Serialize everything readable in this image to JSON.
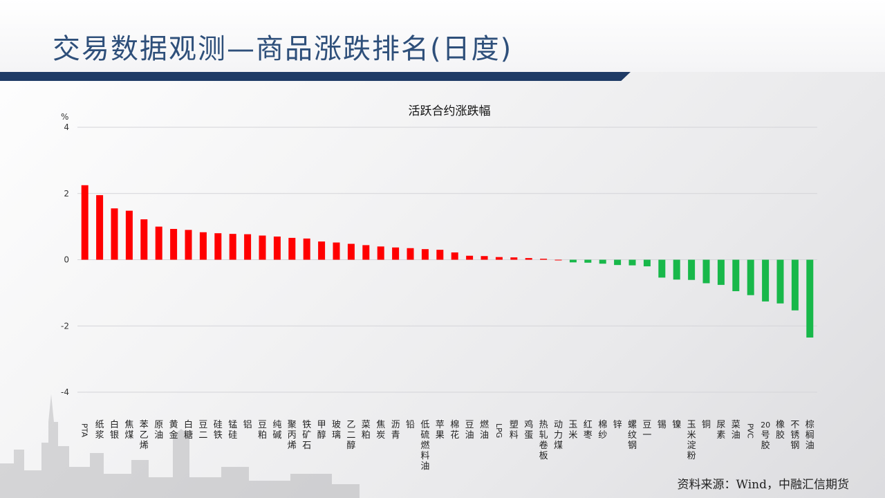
{
  "header": {
    "title": "交易数据观测—商品涨跌排名(日度)"
  },
  "source": "资料来源：Wind，中融汇信期货",
  "colors": {
    "up": "#ff0000",
    "down": "#18b84a",
    "title": "#2e4f7a",
    "bar": "#1f3b66"
  },
  "chart_data": {
    "type": "bar",
    "title": "活跃合约涨跌幅",
    "ylabel": "%",
    "ylim": [
      -4,
      4
    ],
    "yticks": [
      4,
      2,
      0,
      -2,
      -4
    ],
    "grid": true,
    "categories": [
      "PTA",
      "纸浆",
      "白银",
      "焦煤",
      "苯乙烯",
      "原油",
      "黄金",
      "白糖",
      "豆二",
      "硅铁",
      "锰硅",
      "铝",
      "豆粕",
      "纯碱",
      "聚丙烯",
      "铁矿石",
      "甲醇",
      "玻璃",
      "乙二醇",
      "菜粕",
      "焦炭",
      "沥青",
      "铅",
      "低硫燃料油",
      "苹果",
      "棉花",
      "豆油",
      "燃油",
      "LPG",
      "塑料",
      "鸡蛋",
      "热轧卷板",
      "动力煤",
      "玉米",
      "红枣",
      "棉纱",
      "锌",
      "螺纹钢",
      "豆一",
      "锡",
      "镍",
      "玉米淀粉",
      "铜",
      "尿素",
      "菜油",
      "PVC",
      "20号胶",
      "橡胶",
      "不锈钢",
      "棕榈油"
    ],
    "values": [
      2.25,
      1.95,
      1.55,
      1.48,
      1.22,
      1.0,
      0.93,
      0.9,
      0.83,
      0.8,
      0.78,
      0.77,
      0.73,
      0.7,
      0.66,
      0.64,
      0.55,
      0.52,
      0.48,
      0.44,
      0.4,
      0.37,
      0.35,
      0.32,
      0.3,
      0.22,
      0.12,
      0.11,
      0.08,
      0.07,
      0.05,
      0.03,
      0.0,
      -0.08,
      -0.09,
      -0.12,
      -0.16,
      -0.17,
      -0.2,
      -0.54,
      -0.6,
      -0.61,
      -0.71,
      -0.76,
      -0.95,
      -1.07,
      -1.26,
      -1.32,
      -1.53,
      -2.35
    ]
  }
}
